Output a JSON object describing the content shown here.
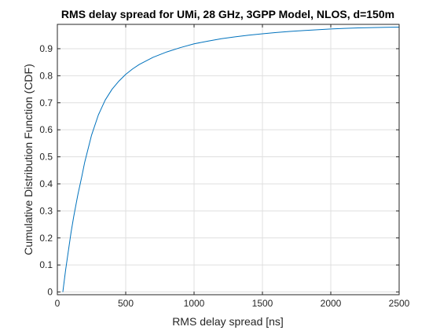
{
  "chart_data": {
    "type": "line",
    "title": "RMS delay spread for UMi, 28 GHz, 3GPP Model, NLOS, d=150m",
    "xlabel": "RMS delay spread [ns]",
    "ylabel": "Cumulative Distribution Function (CDF)",
    "xlim": [
      0,
      2500
    ],
    "ylim": [
      -0.01,
      0.99
    ],
    "xticks": [
      0,
      500,
      1000,
      1500,
      2000,
      2500
    ],
    "yticks": [
      0,
      0.1,
      0.2,
      0.3,
      0.4,
      0.5,
      0.6,
      0.7,
      0.8,
      0.9
    ],
    "grid": true,
    "series": [
      {
        "color": "#0072bd",
        "x": [
          40,
          60,
          80,
          100,
          120,
          150,
          180,
          200,
          250,
          300,
          350,
          400,
          450,
          500,
          550,
          600,
          700,
          800,
          900,
          1000,
          1100,
          1200,
          1300,
          1400,
          1500,
          1600,
          1700,
          1800,
          1900,
          2000,
          2100,
          2200,
          2300,
          2400,
          2500
        ],
        "y": [
          0.0,
          0.08,
          0.15,
          0.22,
          0.28,
          0.36,
          0.43,
          0.48,
          0.58,
          0.655,
          0.71,
          0.75,
          0.78,
          0.805,
          0.825,
          0.842,
          0.868,
          0.888,
          0.904,
          0.918,
          0.928,
          0.937,
          0.944,
          0.95,
          0.955,
          0.96,
          0.964,
          0.967,
          0.97,
          0.973,
          0.975,
          0.977,
          0.978,
          0.979,
          0.98
        ]
      }
    ]
  }
}
